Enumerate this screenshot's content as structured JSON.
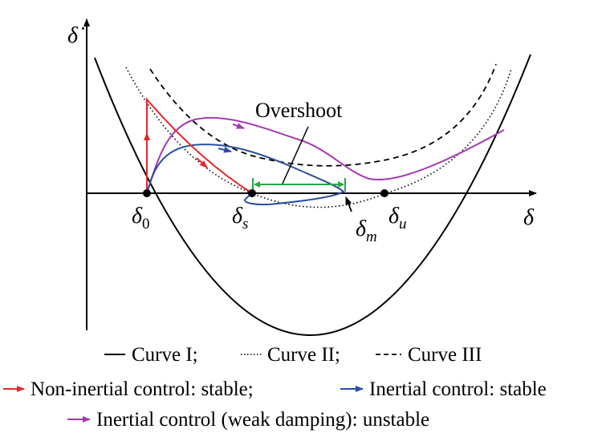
{
  "axes": {
    "x_label": "δ",
    "y_label": "δ̇"
  },
  "points": {
    "d0": {
      "base": "δ",
      "sub": "0"
    },
    "ds": {
      "base": "δ",
      "sub": "s"
    },
    "dm": {
      "base": "δ",
      "sub": "m"
    },
    "du": {
      "base": "δ",
      "sub": "u"
    }
  },
  "annotation": {
    "overshoot": "Overshoot"
  },
  "legend": {
    "curve1": "Curve I;",
    "curve2": "Curve II;",
    "curve3": "Curve III",
    "red": "Non-inertial control: stable;",
    "blue": "Inertial control: stable",
    "purple": "Inertial control (weak damping): unstable"
  },
  "colors": {
    "red": "#e8262a",
    "blue": "#2b4ea2",
    "purple": "#a23ab0",
    "green": "#27a844",
    "black": "#000000"
  }
}
